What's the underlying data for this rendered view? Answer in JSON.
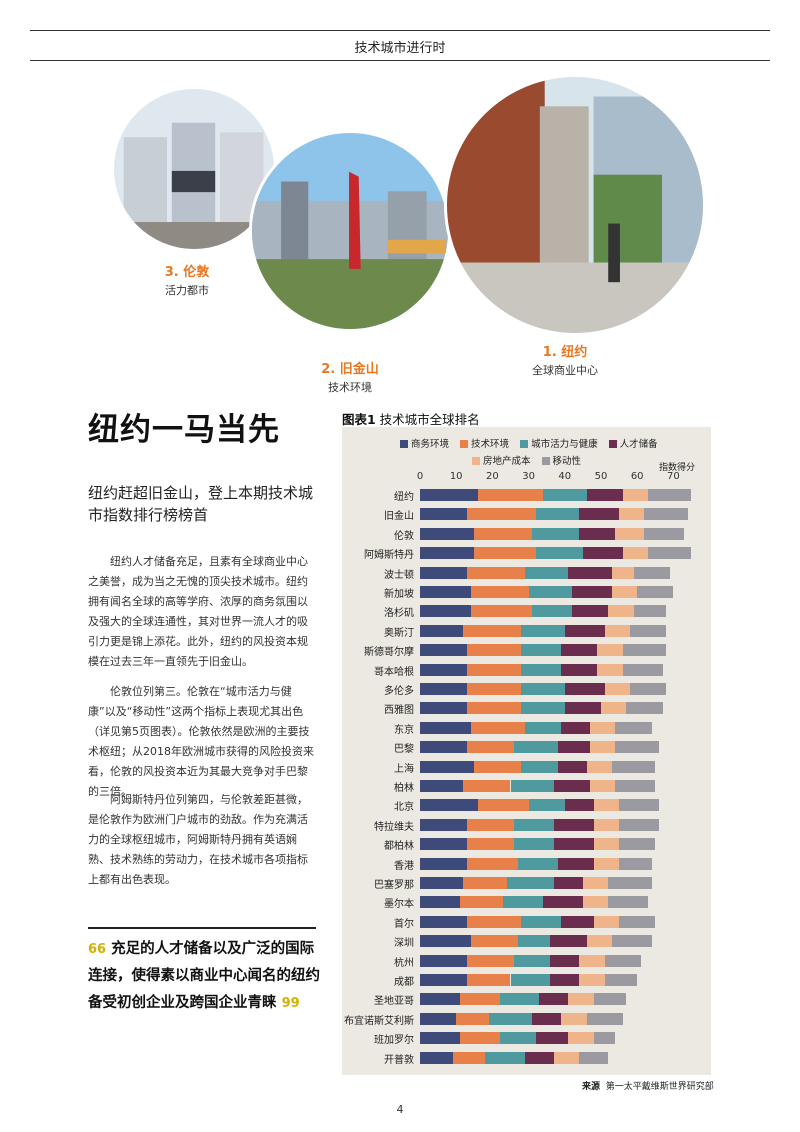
{
  "header": {
    "title": "技术城市进行时"
  },
  "cities_top": [
    {
      "num": "3. 伦敦",
      "sub": "活力都市"
    },
    {
      "num": "2. 旧金山",
      "sub": "技术环境"
    },
    {
      "num": "1. 纽约",
      "sub": "全球商业中心"
    }
  ],
  "article": {
    "title": "纽约一马当先",
    "subhead": "纽约赶超旧金山，登上本期技术城市指数排行榜榜首",
    "paragraphs": [
      "纽约人才储备充足，且素有全球商业中心之美誉，成为当之无愧的顶尖技术城市。纽约拥有闻名全球的高等学府、浓厚的商务氛围以及强大的全球连通性，其对世界一流人才的吸引力更是锦上添花。此外，纽约的风投资本规模在过去三年一直领先于旧金山。",
      "伦敦位列第三。伦敦在“城市活力与健康”以及“移动性”这两个指标上表现尤其出色（详见第5页图表）。伦敦依然是欧洲的主要技术枢纽；从2018年欧洲城市获得的风险投资来看，伦敦的风投资本近为其最大竞争对手巴黎的三倍。",
      "阿姆斯特丹位列第四，与伦敦差距甚微，是伦敦作为欧洲门户城市的劲敌。作为充满活力的全球枢纽城市，阿姆斯特丹拥有英语娴熟、技术熟练的劳动力，在技术城市各项指标上都有出色表现。"
    ],
    "quote": "充足的人才储备以及广泛的国际连接，使得素以商业中心闻名的纽约备受初创企业及跨国企业青睐",
    "quote_open": "66",
    "quote_close": "99"
  },
  "chart_title_prefix": "图表1",
  "chart_title_text": " 技术城市全球排名",
  "score_axis_label": "指数得分",
  "source_label": "来源",
  "source_text": "第一太平戴维斯世界研究部",
  "page_number": "4",
  "colors": {
    "business": "#3d4a7a",
    "tech": "#e8804a",
    "vibrancy": "#4e9a9e",
    "talent": "#6b2d4e",
    "cost": "#f0b48a",
    "mobility": "#9a9aa0",
    "accent": "#e87722"
  },
  "chart_data": {
    "type": "bar",
    "orientation": "horizontal",
    "stacked": true,
    "title": "技术城市全球排名",
    "xlabel": "指数得分",
    "xlim": [
      0,
      75
    ],
    "xticks": [
      0,
      10,
      20,
      30,
      40,
      50,
      60,
      70
    ],
    "legend_position": "top",
    "categories": [
      "纽约",
      "旧金山",
      "伦敦",
      "阿姆斯特丹",
      "波士顿",
      "新加坡",
      "洛杉矶",
      "奥斯汀",
      "斯德哥尔摩",
      "哥本哈根",
      "多伦多",
      "西雅图",
      "东京",
      "巴黎",
      "上海",
      "柏林",
      "北京",
      "特拉维夫",
      "都柏林",
      "香港",
      "巴塞罗那",
      "墨尔本",
      "首尔",
      "深圳",
      "杭州",
      "成都",
      "圣地亚哥",
      "布宜诺斯艾利斯",
      "班加罗尔",
      "开普敦"
    ],
    "series": [
      {
        "name": "商务环境",
        "values": [
          16,
          13,
          15,
          15,
          13,
          14,
          14,
          12,
          13,
          13,
          13,
          13,
          14,
          13,
          15,
          12,
          16,
          13,
          13,
          13,
          12,
          11,
          13,
          14,
          13,
          13,
          11,
          10,
          11,
          9
        ]
      },
      {
        "name": "技术环境",
        "values": [
          18,
          19,
          16,
          17,
          16,
          16,
          17,
          16,
          15,
          15,
          15,
          15,
          15,
          13,
          13,
          13,
          14,
          13,
          13,
          14,
          12,
          12,
          15,
          13,
          13,
          12,
          11,
          9,
          11,
          9
        ]
      },
      {
        "name": "城市活力与健康",
        "values": [
          12,
          12,
          13,
          13,
          12,
          12,
          11,
          12,
          11,
          11,
          12,
          12,
          10,
          12,
          10,
          12,
          10,
          11,
          11,
          11,
          13,
          11,
          11,
          9,
          10,
          11,
          11,
          12,
          10,
          11
        ]
      },
      {
        "name": "人才储备",
        "values": [
          10,
          11,
          10,
          11,
          12,
          11,
          10,
          11,
          10,
          10,
          11,
          10,
          8,
          9,
          8,
          10,
          8,
          11,
          11,
          10,
          8,
          11,
          9,
          10,
          8,
          8,
          8,
          8,
          9,
          8
        ]
      },
      {
        "name": "房地产成本",
        "values": [
          7,
          7,
          8,
          7,
          6,
          7,
          7,
          7,
          7,
          7,
          7,
          7,
          7,
          7,
          7,
          7,
          7,
          7,
          7,
          7,
          7,
          7,
          7,
          7,
          7,
          7,
          7,
          7,
          7,
          7
        ]
      },
      {
        "name": "移动性",
        "values": [
          12,
          12,
          11,
          12,
          10,
          10,
          9,
          10,
          12,
          11,
          10,
          10,
          10,
          12,
          12,
          11,
          11,
          11,
          10,
          9,
          12,
          11,
          10,
          11,
          10,
          9,
          9,
          10,
          6,
          8
        ]
      }
    ]
  }
}
